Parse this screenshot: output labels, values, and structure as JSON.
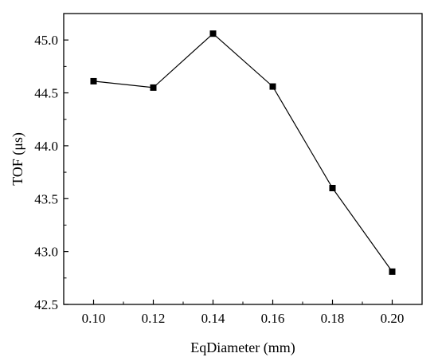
{
  "chart_data": {
    "type": "line",
    "xlabel": "EqDiameter (mm)",
    "ylabel": "TOF (μs)",
    "xlim": [
      0.09,
      0.21
    ],
    "ylim": [
      42.5,
      45.25
    ],
    "x_ticks": [
      "0.10",
      "0.12",
      "0.14",
      "0.16",
      "0.18",
      "0.20"
    ],
    "y_ticks": [
      "42.5",
      "43.0",
      "43.5",
      "44.0",
      "44.5",
      "45.0"
    ],
    "series": [
      {
        "x": [
          0.1,
          0.12,
          0.14,
          0.16,
          0.18,
          0.2
        ],
        "y": [
          44.61,
          44.55,
          45.06,
          44.56,
          43.6,
          42.81
        ]
      }
    ],
    "grid": false,
    "marker": "square",
    "colors": {
      "line": "#000000",
      "marker": "#000000",
      "axis": "#000000"
    }
  }
}
